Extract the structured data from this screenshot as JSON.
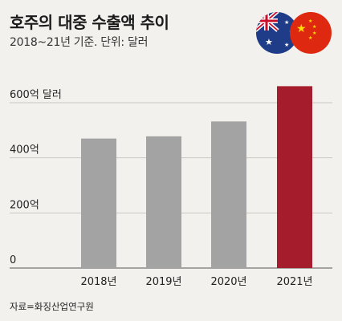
{
  "header": {
    "title": "호주의 대중 수출액 추이",
    "subtitle": "2018~21년 기준. 단위: 달러"
  },
  "source": "자료=화징산업연구원",
  "flags": [
    "australia-flag",
    "china-flag"
  ],
  "colors": {
    "background": "#f2f1ed",
    "bar": "#a3a3a3",
    "highlight_bar": "#a51d2d",
    "grid": "#c9c8c3",
    "text": "#222222"
  },
  "chart_data": {
    "type": "bar",
    "categories": [
      "2018년",
      "2019년",
      "2020년",
      "2021년"
    ],
    "values": [
      470,
      478,
      532,
      660
    ],
    "highlight_index": 3,
    "ylim": [
      0,
      600
    ],
    "yticks": [
      {
        "value": 0,
        "label": "0"
      },
      {
        "value": 200,
        "label": "200억"
      },
      {
        "value": 400,
        "label": "400억"
      },
      {
        "value": 600,
        "label": "600억 달러"
      }
    ],
    "grid": true
  }
}
